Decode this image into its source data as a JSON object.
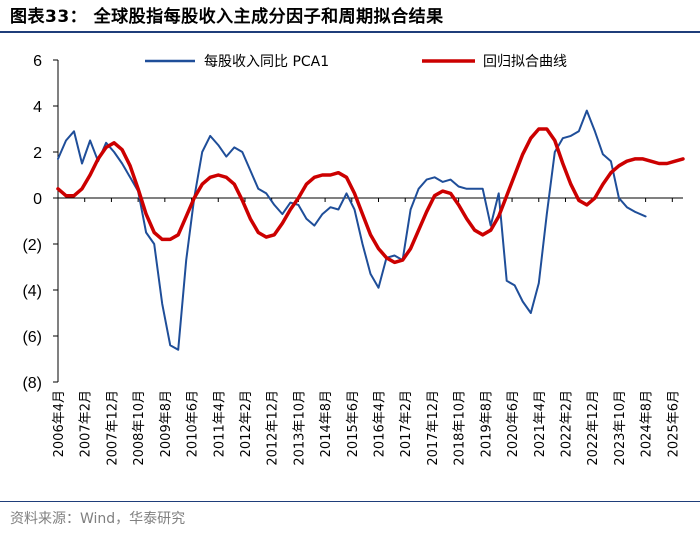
{
  "header": {
    "title": "图表33： 全球股指每股收入主成分因子和周期拟合结果"
  },
  "footer": {
    "source": "资料来源：Wind，华泰研究"
  },
  "colors": {
    "series1": "#1f4e99",
    "series2": "#cc0000",
    "rule": "#1f3e7a",
    "axis": "#000000"
  },
  "chart_data": {
    "type": "line",
    "title": "全球股指每股收入主成分因子和周期拟合结果",
    "ylim": [
      -8,
      6
    ],
    "yticks": [
      6,
      4,
      2,
      0,
      -2,
      -4,
      -6,
      -8
    ],
    "ytick_labels": [
      "6",
      "4",
      "2",
      "0",
      "(2)",
      "(4)",
      "(6)",
      "(8)"
    ],
    "xlim": [
      "2006-04",
      "2025-10"
    ],
    "xtick_labels": [
      "2006年4月",
      "2007年2月",
      "2007年12月",
      "2008年10月",
      "2009年8月",
      "2010年6月",
      "2011年4月",
      "2012年2月",
      "2012年12月",
      "2013年10月",
      "2014年8月",
      "2015年6月",
      "2016年4月",
      "2017年2月",
      "2017年12月",
      "2018年10月",
      "2019年8月",
      "2020年6月",
      "2021年4月",
      "2022年2月",
      "2022年12月",
      "2023年10月",
      "2024年8月",
      "2025年6月"
    ],
    "xtick_dates": [
      "2006-04",
      "2007-02",
      "2007-12",
      "2008-10",
      "2009-08",
      "2010-06",
      "2011-04",
      "2012-02",
      "2012-12",
      "2013-10",
      "2014-08",
      "2015-06",
      "2016-04",
      "2017-02",
      "2017-12",
      "2018-10",
      "2019-08",
      "2020-06",
      "2021-04",
      "2022-02",
      "2022-12",
      "2023-10",
      "2024-08",
      "2025-06"
    ],
    "series": [
      {
        "name": "每股收入同比 PCA1",
        "x": [
          "2006-04",
          "2006-07",
          "2006-10",
          "2007-01",
          "2007-04",
          "2007-07",
          "2007-10",
          "2008-01",
          "2008-04",
          "2008-07",
          "2008-10",
          "2009-01",
          "2009-04",
          "2009-07",
          "2009-10",
          "2010-01",
          "2010-04",
          "2010-07",
          "2010-10",
          "2011-01",
          "2011-04",
          "2011-07",
          "2011-10",
          "2012-01",
          "2012-04",
          "2012-07",
          "2012-10",
          "2013-01",
          "2013-04",
          "2013-07",
          "2013-10",
          "2014-01",
          "2014-04",
          "2014-07",
          "2014-10",
          "2015-01",
          "2015-04",
          "2015-07",
          "2015-10",
          "2016-01",
          "2016-04",
          "2016-07",
          "2016-10",
          "2017-01",
          "2017-04",
          "2017-07",
          "2017-10",
          "2018-01",
          "2018-04",
          "2018-07",
          "2018-10",
          "2019-01",
          "2019-04",
          "2019-07",
          "2019-10",
          "2020-01",
          "2020-04",
          "2020-07",
          "2020-10",
          "2021-01",
          "2021-04",
          "2021-07",
          "2021-10",
          "2022-01",
          "2022-04",
          "2022-07",
          "2022-10",
          "2023-01",
          "2023-04",
          "2023-07",
          "2023-10",
          "2024-01",
          "2024-04",
          "2024-08"
        ],
        "values": [
          1.7,
          2.5,
          2.9,
          1.5,
          2.5,
          1.6,
          2.4,
          2.0,
          1.5,
          0.9,
          0.3,
          -1.5,
          -2.0,
          -4.6,
          -6.4,
          -6.6,
          -2.7,
          0.0,
          2.0,
          2.7,
          2.3,
          1.8,
          2.2,
          2.0,
          1.2,
          0.4,
          0.2,
          -0.3,
          -0.7,
          -0.2,
          -0.3,
          -0.9,
          -1.2,
          -0.7,
          -0.4,
          -0.5,
          0.2,
          -0.5,
          -2.0,
          -3.3,
          -3.9,
          -2.6,
          -2.5,
          -2.7,
          -0.5,
          0.4,
          0.8,
          0.9,
          0.7,
          0.8,
          0.5,
          0.4,
          0.4,
          0.4,
          -1.2,
          0.2,
          -3.6,
          -3.8,
          -4.5,
          -5.0,
          -3.7,
          -0.7,
          2.0,
          2.6,
          2.7,
          2.9,
          3.8,
          2.9,
          1.9,
          1.6,
          0.0,
          -0.4,
          -0.6,
          -0.8
        ]
      },
      {
        "name": "回归拟合曲线",
        "x": [
          "2006-04",
          "2006-07",
          "2006-10",
          "2007-01",
          "2007-04",
          "2007-07",
          "2007-10",
          "2008-01",
          "2008-04",
          "2008-07",
          "2008-10",
          "2009-01",
          "2009-04",
          "2009-07",
          "2009-10",
          "2010-01",
          "2010-04",
          "2010-07",
          "2010-10",
          "2011-01",
          "2011-04",
          "2011-07",
          "2011-10",
          "2012-01",
          "2012-04",
          "2012-07",
          "2012-10",
          "2013-01",
          "2013-04",
          "2013-07",
          "2013-10",
          "2014-01",
          "2014-04",
          "2014-07",
          "2014-10",
          "2015-01",
          "2015-04",
          "2015-07",
          "2015-10",
          "2016-01",
          "2016-04",
          "2016-07",
          "2016-10",
          "2017-01",
          "2017-04",
          "2017-07",
          "2017-10",
          "2018-01",
          "2018-04",
          "2018-07",
          "2018-10",
          "2019-01",
          "2019-04",
          "2019-07",
          "2019-10",
          "2020-01",
          "2020-04",
          "2020-07",
          "2020-10",
          "2021-01",
          "2021-04",
          "2021-07",
          "2021-10",
          "2022-01",
          "2022-04",
          "2022-07",
          "2022-10",
          "2023-01",
          "2023-04",
          "2023-07",
          "2023-10",
          "2024-01",
          "2024-04",
          "2024-07",
          "2024-10",
          "2025-01",
          "2025-04",
          "2025-07",
          "2025-10"
        ],
        "values": [
          0.4,
          0.1,
          0.1,
          0.4,
          1.0,
          1.7,
          2.2,
          2.4,
          2.1,
          1.4,
          0.4,
          -0.7,
          -1.5,
          -1.8,
          -1.8,
          -1.6,
          -0.8,
          0.0,
          0.6,
          0.9,
          1.0,
          0.9,
          0.6,
          -0.1,
          -0.9,
          -1.5,
          -1.7,
          -1.6,
          -1.1,
          -0.5,
          0.0,
          0.6,
          0.9,
          1.0,
          1.0,
          1.1,
          0.9,
          0.2,
          -0.7,
          -1.6,
          -2.2,
          -2.6,
          -2.8,
          -2.7,
          -2.2,
          -1.4,
          -0.6,
          0.1,
          0.3,
          0.2,
          -0.3,
          -0.9,
          -1.4,
          -1.6,
          -1.4,
          -0.8,
          0.1,
          1.0,
          1.9,
          2.6,
          3.0,
          3.0,
          2.5,
          1.5,
          0.6,
          -0.1,
          -0.3,
          0.0,
          0.6,
          1.1,
          1.4,
          1.6,
          1.7,
          1.7,
          1.6,
          1.5,
          1.5,
          1.6,
          1.7
        ]
      }
    ],
    "legend_position": "top"
  }
}
